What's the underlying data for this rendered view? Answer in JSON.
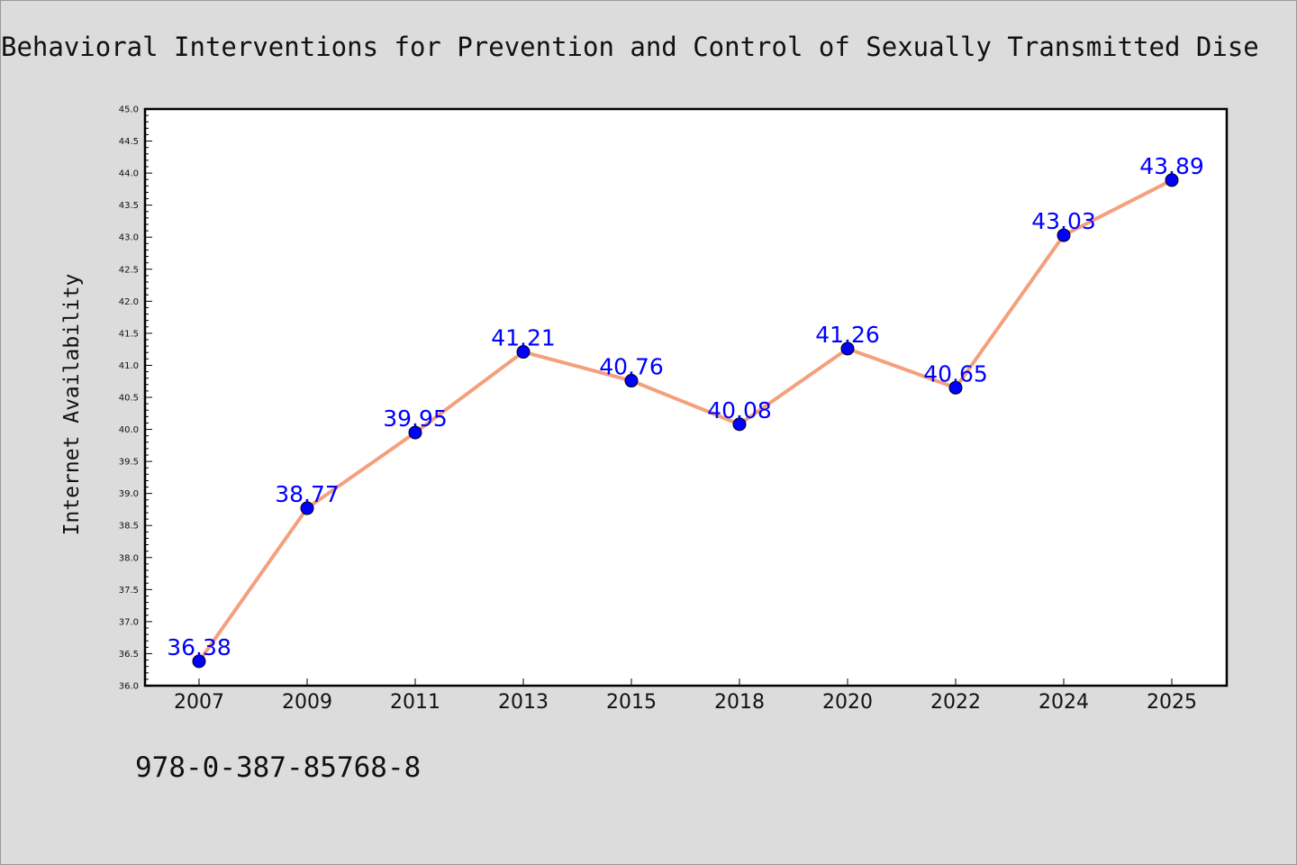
{
  "chart_data": {
    "type": "line",
    "title": "Behavioral Interventions for Prevention and Control of Sexually Transmitted Dise",
    "xlabel": "",
    "ylabel": "Internet Availability",
    "categories": [
      "2007",
      "2009",
      "2011",
      "2013",
      "2015",
      "2018",
      "2020",
      "2022",
      "2024",
      "2025"
    ],
    "series": [
      {
        "values": [
          36.38,
          38.77,
          39.95,
          41.21,
          40.76,
          40.08,
          41.26,
          40.65,
          43.03,
          43.89
        ],
        "labels": [
          "36.38",
          "38.77",
          "39.95",
          "41.21",
          "40.76",
          "40.08",
          "41.26",
          "40.65",
          "43.03",
          "43.89"
        ],
        "line_color": "#f4a07c",
        "marker_color": "#0000ff"
      }
    ],
    "ylim": [
      36.0,
      45.0
    ],
    "yticks": [
      "36.0",
      "36.5",
      "37.0",
      "37.5",
      "38.0",
      "38.5",
      "39.0",
      "39.5",
      "40.0",
      "40.5",
      "41.0",
      "41.5",
      "42.0",
      "42.5",
      "43.0",
      "43.5",
      "44.0",
      "44.5",
      "45.0"
    ],
    "grid": false,
    "legend": "none"
  },
  "caption": "978-0-387-85768-8",
  "colors": {
    "background": "#dcdcdc",
    "plot_background": "#ffffff",
    "data_label": "#0000ff"
  }
}
